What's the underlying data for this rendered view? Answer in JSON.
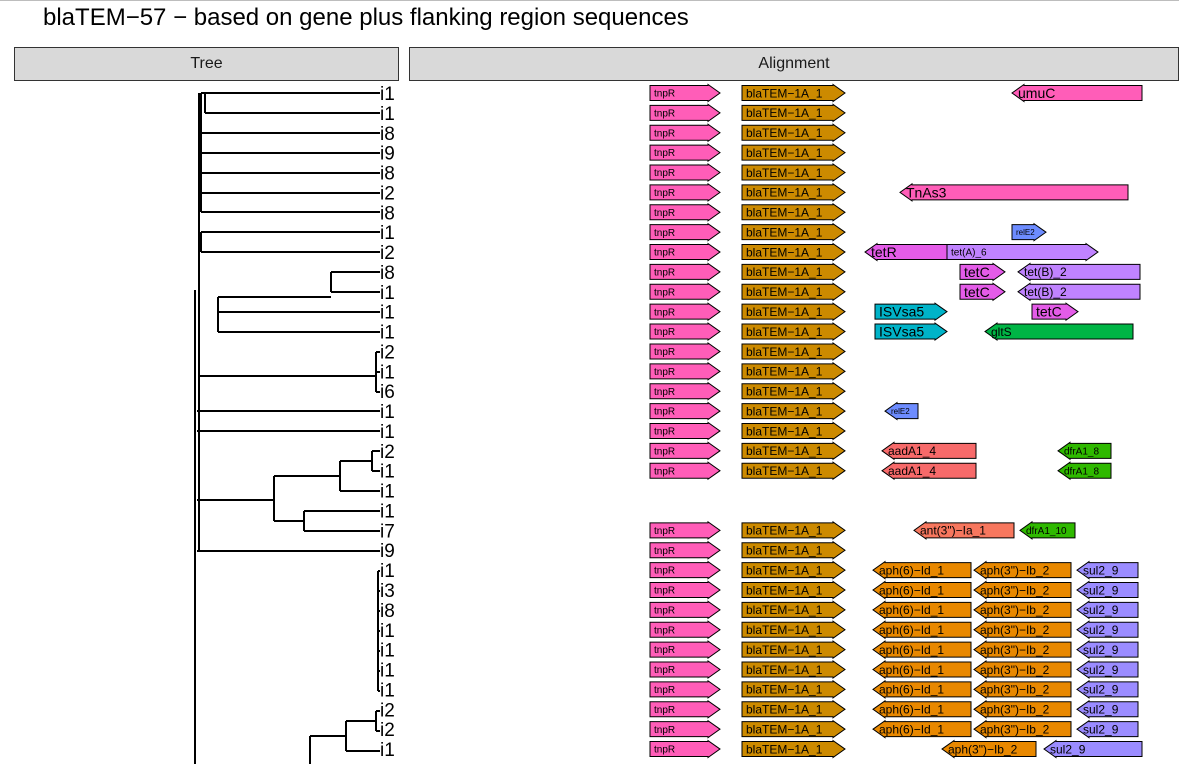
{
  "title": "blaTEM−57 − based on gene plus flanking region sequences",
  "panels": {
    "tree": "Tree",
    "alignment": "Alignment"
  },
  "colors": {
    "tnpR": "#ff5db8",
    "blaTEM": "#cc8a00",
    "umuC": "#ff5db8",
    "TnAs3": "#ff5db8",
    "relE2": "#6d8cff",
    "tetR": "#e45ce8",
    "tetA": "#c083ff",
    "tetC": "#e45ce8",
    "tetB": "#c083ff",
    "ISVsa5": "#00b3c8",
    "gltS": "#00b545",
    "aadA1": "#f76a6a",
    "dfrA1": "#2fb900",
    "ant3": "#f7775e",
    "aph6": "#e88800",
    "aph3": "#e88800",
    "sul2": "#9b8cff"
  },
  "tip_labels": [
    "i1",
    "i1",
    "i8",
    "i9",
    "i8",
    "i2",
    "i8",
    "i1",
    "i2",
    "i8",
    "i1",
    "i1",
    "i1",
    "i2",
    "i1",
    "i6",
    "i1",
    "i1",
    "i2",
    "i1",
    "i1",
    "i1",
    "i7",
    "i9",
    "i1",
    "i3",
    "i8",
    "i1",
    "i1",
    "i1",
    "i1",
    "i2",
    "i2",
    "i1"
  ],
  "tracks": [
    [
      {
        "label": "tnpR",
        "c": "tnpR",
        "x0": 650,
        "x1": 720,
        "dir": "r"
      },
      {
        "label": "blaTEM−1A_1",
        "c": "blaTEM",
        "x0": 742,
        "x1": 845,
        "dir": "r"
      },
      {
        "label": "umuC",
        "c": "umuC",
        "x0": 1012,
        "x1": 1142,
        "dir": "l"
      }
    ],
    [
      {
        "label": "tnpR",
        "c": "tnpR",
        "x0": 650,
        "x1": 720,
        "dir": "r"
      },
      {
        "label": "blaTEM−1A_1",
        "c": "blaTEM",
        "x0": 742,
        "x1": 845,
        "dir": "r"
      }
    ],
    [
      {
        "label": "tnpR",
        "c": "tnpR",
        "x0": 650,
        "x1": 720,
        "dir": "r"
      },
      {
        "label": "blaTEM−1A_1",
        "c": "blaTEM",
        "x0": 742,
        "x1": 845,
        "dir": "r"
      }
    ],
    [
      {
        "label": "tnpR",
        "c": "tnpR",
        "x0": 650,
        "x1": 720,
        "dir": "r"
      },
      {
        "label": "blaTEM−1A_1",
        "c": "blaTEM",
        "x0": 742,
        "x1": 845,
        "dir": "r"
      }
    ],
    [
      {
        "label": "tnpR",
        "c": "tnpR",
        "x0": 650,
        "x1": 720,
        "dir": "r"
      },
      {
        "label": "blaTEM−1A_1",
        "c": "blaTEM",
        "x0": 742,
        "x1": 845,
        "dir": "r"
      }
    ],
    [
      {
        "label": "tnpR",
        "c": "tnpR",
        "x0": 650,
        "x1": 720,
        "dir": "r"
      },
      {
        "label": "blaTEM−1A_1",
        "c": "blaTEM",
        "x0": 742,
        "x1": 845,
        "dir": "r"
      },
      {
        "label": "TnAs3",
        "c": "TnAs3",
        "x0": 900,
        "x1": 1128,
        "dir": "l"
      }
    ],
    [
      {
        "label": "tnpR",
        "c": "tnpR",
        "x0": 650,
        "x1": 720,
        "dir": "r"
      },
      {
        "label": "blaTEM−1A_1",
        "c": "blaTEM",
        "x0": 742,
        "x1": 845,
        "dir": "r"
      }
    ],
    [
      {
        "label": "tnpR",
        "c": "tnpR",
        "x0": 650,
        "x1": 720,
        "dir": "r"
      },
      {
        "label": "blaTEM−1A_1",
        "c": "blaTEM",
        "x0": 742,
        "x1": 845,
        "dir": "r"
      },
      {
        "label": "relE2",
        "c": "relE2",
        "x0": 1012,
        "x1": 1046,
        "dir": "r"
      }
    ],
    [
      {
        "label": "tnpR",
        "c": "tnpR",
        "x0": 650,
        "x1": 720,
        "dir": "r"
      },
      {
        "label": "blaTEM−1A_1",
        "c": "blaTEM",
        "x0": 742,
        "x1": 845,
        "dir": "r"
      },
      {
        "label": "tetR",
        "c": "tetR",
        "x0": 865,
        "x1": 947,
        "dir": "l"
      },
      {
        "label": "tet(A)_6",
        "c": "tetA",
        "x0": 947,
        "x1": 1098,
        "dir": "r"
      }
    ],
    [
      {
        "label": "tnpR",
        "c": "tnpR",
        "x0": 650,
        "x1": 720,
        "dir": "r"
      },
      {
        "label": "blaTEM−1A_1",
        "c": "blaTEM",
        "x0": 742,
        "x1": 845,
        "dir": "r"
      },
      {
        "label": "tetC",
        "c": "tetC",
        "x0": 960,
        "x1": 1005,
        "dir": "r"
      },
      {
        "label": "tet(B)_2",
        "c": "tetB",
        "x0": 1018,
        "x1": 1140,
        "dir": "l"
      }
    ],
    [
      {
        "label": "tnpR",
        "c": "tnpR",
        "x0": 650,
        "x1": 720,
        "dir": "r"
      },
      {
        "label": "blaTEM−1A_1",
        "c": "blaTEM",
        "x0": 742,
        "x1": 845,
        "dir": "r"
      },
      {
        "label": "tetC",
        "c": "tetC",
        "x0": 960,
        "x1": 1005,
        "dir": "r"
      },
      {
        "label": "tet(B)_2",
        "c": "tetB",
        "x0": 1018,
        "x1": 1140,
        "dir": "l"
      }
    ],
    [
      {
        "label": "tnpR",
        "c": "tnpR",
        "x0": 650,
        "x1": 720,
        "dir": "r"
      },
      {
        "label": "blaTEM−1A_1",
        "c": "blaTEM",
        "x0": 742,
        "x1": 845,
        "dir": "r"
      },
      {
        "label": "ISVsa5",
        "c": "ISVsa5",
        "x0": 875,
        "x1": 947,
        "dir": "r"
      },
      {
        "label": "tetC",
        "c": "tetC",
        "x0": 1032,
        "x1": 1078,
        "dir": "r"
      }
    ],
    [
      {
        "label": "tnpR",
        "c": "tnpR",
        "x0": 650,
        "x1": 720,
        "dir": "r"
      },
      {
        "label": "blaTEM−1A_1",
        "c": "blaTEM",
        "x0": 742,
        "x1": 845,
        "dir": "r"
      },
      {
        "label": "ISVsa5",
        "c": "ISVsa5",
        "x0": 875,
        "x1": 947,
        "dir": "r"
      },
      {
        "label": "gltS",
        "c": "gltS",
        "x0": 985,
        "x1": 1133,
        "dir": "l"
      }
    ],
    [
      {
        "label": "tnpR",
        "c": "tnpR",
        "x0": 650,
        "x1": 720,
        "dir": "r"
      },
      {
        "label": "blaTEM−1A_1",
        "c": "blaTEM",
        "x0": 742,
        "x1": 845,
        "dir": "r"
      }
    ],
    [
      {
        "label": "tnpR",
        "c": "tnpR",
        "x0": 650,
        "x1": 720,
        "dir": "r"
      },
      {
        "label": "blaTEM−1A_1",
        "c": "blaTEM",
        "x0": 742,
        "x1": 845,
        "dir": "r"
      }
    ],
    [
      {
        "label": "tnpR",
        "c": "tnpR",
        "x0": 650,
        "x1": 720,
        "dir": "r"
      },
      {
        "label": "blaTEM−1A_1",
        "c": "blaTEM",
        "x0": 742,
        "x1": 845,
        "dir": "r"
      }
    ],
    [
      {
        "label": "tnpR",
        "c": "tnpR",
        "x0": 650,
        "x1": 720,
        "dir": "r"
      },
      {
        "label": "blaTEM−1A_1",
        "c": "blaTEM",
        "x0": 742,
        "x1": 845,
        "dir": "r"
      },
      {
        "label": "relE2",
        "c": "relE2",
        "x0": 885,
        "x1": 918,
        "dir": "l"
      }
    ],
    [
      {
        "label": "tnpR",
        "c": "tnpR",
        "x0": 650,
        "x1": 720,
        "dir": "r"
      },
      {
        "label": "blaTEM−1A_1",
        "c": "blaTEM",
        "x0": 742,
        "x1": 845,
        "dir": "r"
      }
    ],
    [
      {
        "label": "tnpR",
        "c": "tnpR",
        "x0": 650,
        "x1": 720,
        "dir": "r"
      },
      {
        "label": "blaTEM−1A_1",
        "c": "blaTEM",
        "x0": 742,
        "x1": 845,
        "dir": "r"
      },
      {
        "label": "aadA1_4",
        "c": "aadA1",
        "x0": 882,
        "x1": 976,
        "dir": "l"
      },
      {
        "label": "dfrA1_8",
        "c": "dfrA1",
        "x0": 1058,
        "x1": 1111,
        "dir": "l"
      }
    ],
    [
      {
        "label": "tnpR",
        "c": "tnpR",
        "x0": 650,
        "x1": 720,
        "dir": "r"
      },
      {
        "label": "blaTEM−1A_1",
        "c": "blaTEM",
        "x0": 742,
        "x1": 845,
        "dir": "r"
      },
      {
        "label": "aadA1_4",
        "c": "aadA1",
        "x0": 882,
        "x1": 976,
        "dir": "l"
      },
      {
        "label": "dfrA1_8",
        "c": "dfrA1",
        "x0": 1058,
        "x1": 1111,
        "dir": "l"
      }
    ],
    [],
    [],
    [
      {
        "label": "tnpR",
        "c": "tnpR",
        "x0": 650,
        "x1": 720,
        "dir": "r"
      },
      {
        "label": "blaTEM−1A_1",
        "c": "blaTEM",
        "x0": 742,
        "x1": 845,
        "dir": "r"
      },
      {
        "label": "ant(3\")−Ia_1",
        "c": "ant3",
        "x0": 914,
        "x1": 1014,
        "dir": "l"
      },
      {
        "label": "dfrA1_10",
        "c": "dfrA1",
        "x0": 1020,
        "x1": 1075,
        "dir": "l"
      }
    ],
    [
      {
        "label": "tnpR",
        "c": "tnpR",
        "x0": 650,
        "x1": 720,
        "dir": "r"
      },
      {
        "label": "blaTEM−1A_1",
        "c": "blaTEM",
        "x0": 742,
        "x1": 845,
        "dir": "r"
      }
    ],
    [
      {
        "label": "tnpR",
        "c": "tnpR",
        "x0": 650,
        "x1": 720,
        "dir": "r"
      },
      {
        "label": "blaTEM−1A_1",
        "c": "blaTEM",
        "x0": 742,
        "x1": 845,
        "dir": "r"
      },
      {
        "label": "aph(6)−Id_1",
        "c": "aph6",
        "x0": 873,
        "x1": 971,
        "dir": "l"
      },
      {
        "label": "aph(3\")−Ib_2",
        "c": "aph3",
        "x0": 974,
        "x1": 1071,
        "dir": "l"
      },
      {
        "label": "sul2_9",
        "c": "sul2",
        "x0": 1077,
        "x1": 1138,
        "dir": "l"
      }
    ],
    [
      {
        "label": "tnpR",
        "c": "tnpR",
        "x0": 650,
        "x1": 720,
        "dir": "r"
      },
      {
        "label": "blaTEM−1A_1",
        "c": "blaTEM",
        "x0": 742,
        "x1": 845,
        "dir": "r"
      },
      {
        "label": "aph(6)−Id_1",
        "c": "aph6",
        "x0": 873,
        "x1": 971,
        "dir": "l"
      },
      {
        "label": "aph(3\")−Ib_2",
        "c": "aph3",
        "x0": 974,
        "x1": 1071,
        "dir": "l"
      },
      {
        "label": "sul2_9",
        "c": "sul2",
        "x0": 1077,
        "x1": 1138,
        "dir": "l"
      }
    ],
    [
      {
        "label": "tnpR",
        "c": "tnpR",
        "x0": 650,
        "x1": 720,
        "dir": "r"
      },
      {
        "label": "blaTEM−1A_1",
        "c": "blaTEM",
        "x0": 742,
        "x1": 845,
        "dir": "r"
      },
      {
        "label": "aph(6)−Id_1",
        "c": "aph6",
        "x0": 873,
        "x1": 971,
        "dir": "l"
      },
      {
        "label": "aph(3\")−Ib_2",
        "c": "aph3",
        "x0": 974,
        "x1": 1071,
        "dir": "l"
      },
      {
        "label": "sul2_9",
        "c": "sul2",
        "x0": 1077,
        "x1": 1138,
        "dir": "l"
      }
    ],
    [
      {
        "label": "tnpR",
        "c": "tnpR",
        "x0": 650,
        "x1": 720,
        "dir": "r"
      },
      {
        "label": "blaTEM−1A_1",
        "c": "blaTEM",
        "x0": 742,
        "x1": 845,
        "dir": "r"
      },
      {
        "label": "aph(6)−Id_1",
        "c": "aph6",
        "x0": 873,
        "x1": 971,
        "dir": "l"
      },
      {
        "label": "aph(3\")−Ib_2",
        "c": "aph3",
        "x0": 974,
        "x1": 1071,
        "dir": "l"
      },
      {
        "label": "sul2_9",
        "c": "sul2",
        "x0": 1077,
        "x1": 1138,
        "dir": "l"
      }
    ],
    [
      {
        "label": "tnpR",
        "c": "tnpR",
        "x0": 650,
        "x1": 720,
        "dir": "r"
      },
      {
        "label": "blaTEM−1A_1",
        "c": "blaTEM",
        "x0": 742,
        "x1": 845,
        "dir": "r"
      },
      {
        "label": "aph(6)−Id_1",
        "c": "aph6",
        "x0": 873,
        "x1": 971,
        "dir": "l"
      },
      {
        "label": "aph(3\")−Ib_2",
        "c": "aph3",
        "x0": 974,
        "x1": 1071,
        "dir": "l"
      },
      {
        "label": "sul2_9",
        "c": "sul2",
        "x0": 1077,
        "x1": 1138,
        "dir": "l"
      }
    ],
    [
      {
        "label": "tnpR",
        "c": "tnpR",
        "x0": 650,
        "x1": 720,
        "dir": "r"
      },
      {
        "label": "blaTEM−1A_1",
        "c": "blaTEM",
        "x0": 742,
        "x1": 845,
        "dir": "r"
      },
      {
        "label": "aph(6)−Id_1",
        "c": "aph6",
        "x0": 873,
        "x1": 971,
        "dir": "l"
      },
      {
        "label": "aph(3\")−Ib_2",
        "c": "aph3",
        "x0": 974,
        "x1": 1071,
        "dir": "l"
      },
      {
        "label": "sul2_9",
        "c": "sul2",
        "x0": 1077,
        "x1": 1138,
        "dir": "l"
      }
    ],
    [
      {
        "label": "tnpR",
        "c": "tnpR",
        "x0": 650,
        "x1": 720,
        "dir": "r"
      },
      {
        "label": "blaTEM−1A_1",
        "c": "blaTEM",
        "x0": 742,
        "x1": 845,
        "dir": "r"
      },
      {
        "label": "aph(6)−Id_1",
        "c": "aph6",
        "x0": 873,
        "x1": 971,
        "dir": "l"
      },
      {
        "label": "aph(3\")−Ib_2",
        "c": "aph3",
        "x0": 974,
        "x1": 1071,
        "dir": "l"
      },
      {
        "label": "sul2_9",
        "c": "sul2",
        "x0": 1077,
        "x1": 1138,
        "dir": "l"
      }
    ],
    [
      {
        "label": "tnpR",
        "c": "tnpR",
        "x0": 650,
        "x1": 720,
        "dir": "r"
      },
      {
        "label": "blaTEM−1A_1",
        "c": "blaTEM",
        "x0": 742,
        "x1": 845,
        "dir": "r"
      },
      {
        "label": "aph(6)−Id_1",
        "c": "aph6",
        "x0": 873,
        "x1": 971,
        "dir": "l"
      },
      {
        "label": "aph(3\")−Ib_2",
        "c": "aph3",
        "x0": 974,
        "x1": 1071,
        "dir": "l"
      },
      {
        "label": "sul2_9",
        "c": "sul2",
        "x0": 1077,
        "x1": 1138,
        "dir": "l"
      }
    ],
    [
      {
        "label": "tnpR",
        "c": "tnpR",
        "x0": 650,
        "x1": 720,
        "dir": "r"
      },
      {
        "label": "blaTEM−1A_1",
        "c": "blaTEM",
        "x0": 742,
        "x1": 845,
        "dir": "r"
      },
      {
        "label": "aph(6)−Id_1",
        "c": "aph6",
        "x0": 873,
        "x1": 971,
        "dir": "l"
      },
      {
        "label": "aph(3\")−Ib_2",
        "c": "aph3",
        "x0": 974,
        "x1": 1071,
        "dir": "l"
      },
      {
        "label": "sul2_9",
        "c": "sul2",
        "x0": 1077,
        "x1": 1138,
        "dir": "l"
      }
    ],
    [
      {
        "label": "tnpR",
        "c": "tnpR",
        "x0": 650,
        "x1": 720,
        "dir": "r"
      },
      {
        "label": "blaTEM−1A_1",
        "c": "blaTEM",
        "x0": 742,
        "x1": 845,
        "dir": "r"
      },
      {
        "label": "aph(3\")−Ib_2",
        "c": "aph3",
        "x0": 942,
        "x1": 1036,
        "dir": "l"
      },
      {
        "label": "sul2_9",
        "c": "sul2",
        "x0": 1044,
        "x1": 1142,
        "dir": "l"
      }
    ]
  ]
}
